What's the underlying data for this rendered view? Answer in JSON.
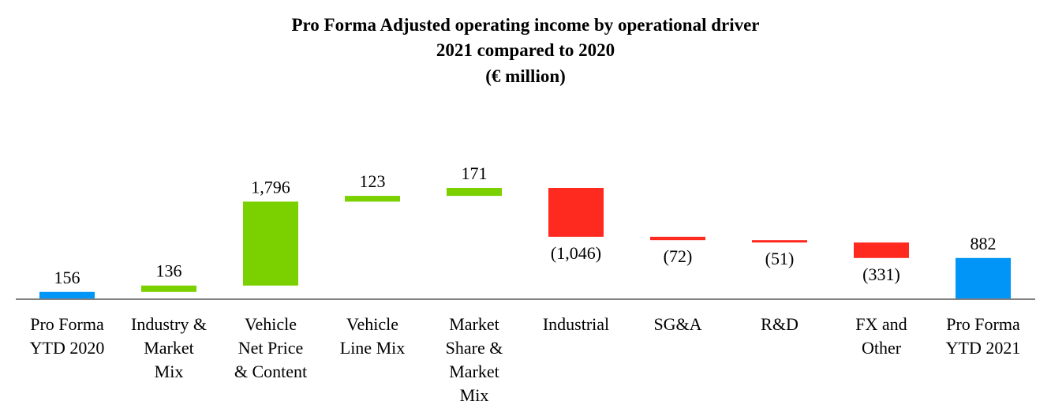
{
  "chart_data": {
    "type": "waterfall",
    "title_lines": [
      "Pro Forma Adjusted operating income by operational driver",
      "2021 compared to 2020",
      "(€ million)"
    ],
    "categories": [
      [
        "Pro Forma",
        "YTD 2020"
      ],
      [
        "Industry &",
        "Market",
        "Mix"
      ],
      [
        "Vehicle",
        "Net Price",
        "& Content"
      ],
      [
        "Vehicle",
        "Line Mix"
      ],
      [
        "Market",
        "Share &",
        "Market",
        "Mix"
      ],
      [
        "Industrial"
      ],
      [
        "SG&A"
      ],
      [
        "R&D"
      ],
      [
        "FX and",
        "Other"
      ],
      [
        "Pro Forma",
        "YTD 2021"
      ]
    ],
    "values": [
      156,
      136,
      1796,
      123,
      171,
      -1046,
      -72,
      -51,
      -331,
      882
    ],
    "kinds": [
      "total",
      "delta",
      "delta",
      "delta",
      "delta",
      "delta",
      "delta",
      "delta",
      "delta",
      "total"
    ],
    "labels": [
      "156",
      "136",
      "1,796",
      "123",
      "171",
      "(1,046)",
      "(72)",
      "(51)",
      "(331)",
      "882"
    ],
    "colors": {
      "total": "#0095F6",
      "increase": "#7BD000",
      "decrease": "#FF2A1F",
      "axis": "#808080"
    },
    "ylim": [
      0,
      2500
    ]
  }
}
